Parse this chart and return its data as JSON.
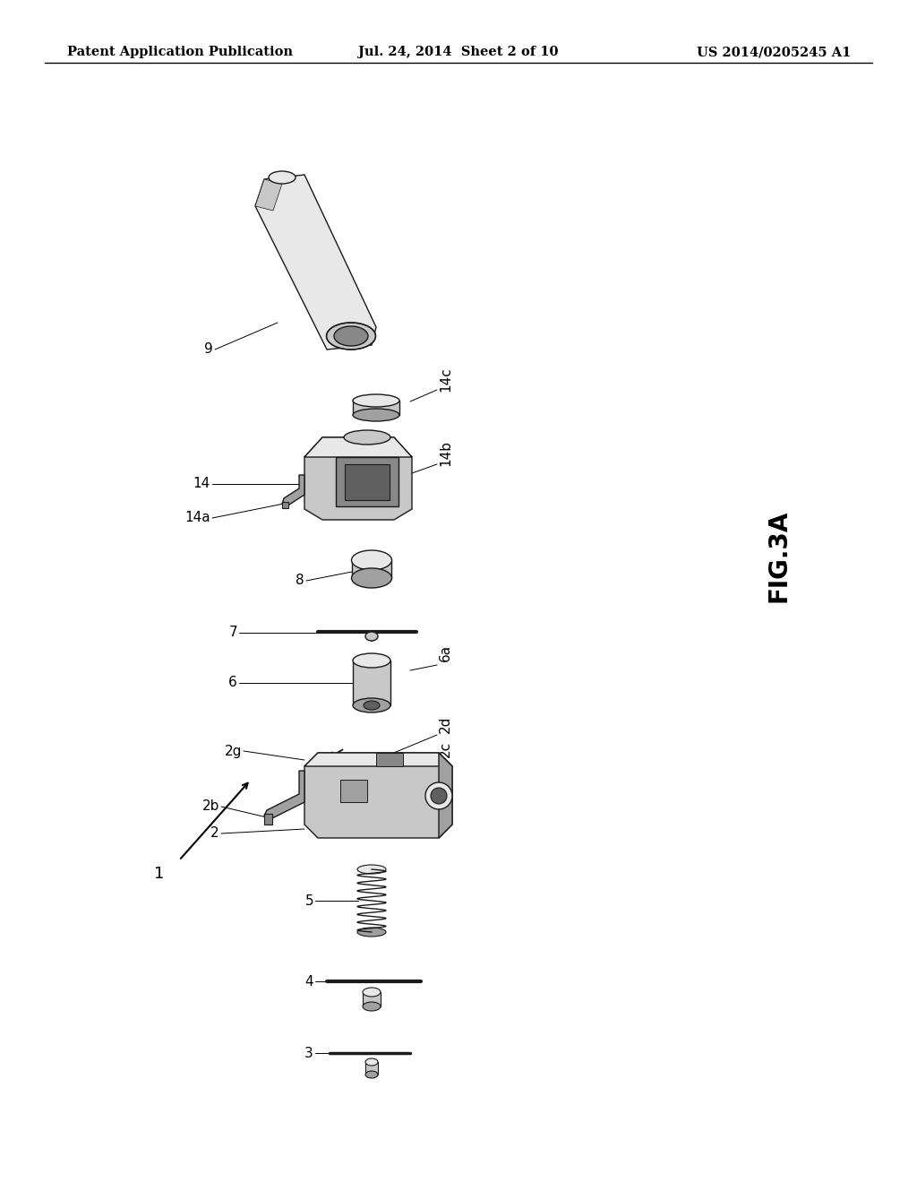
{
  "bg_color": "#ffffff",
  "header_left": "Patent Application Publication",
  "header_mid": "Jul. 24, 2014  Sheet 2 of 10",
  "header_right": "US 2014/0205245 A1",
  "fig_label": "FIG.3A",
  "header_font_size": 10.5,
  "fig_label_font_size": 20,
  "ref_font_size": 11,
  "line_color": "#1a1a1a",
  "fill_light": "#e8e8e8",
  "fill_mid": "#c8c8c8",
  "fill_dark": "#a0a0a0",
  "fill_darker": "#888888",
  "fill_darkest": "#606060"
}
